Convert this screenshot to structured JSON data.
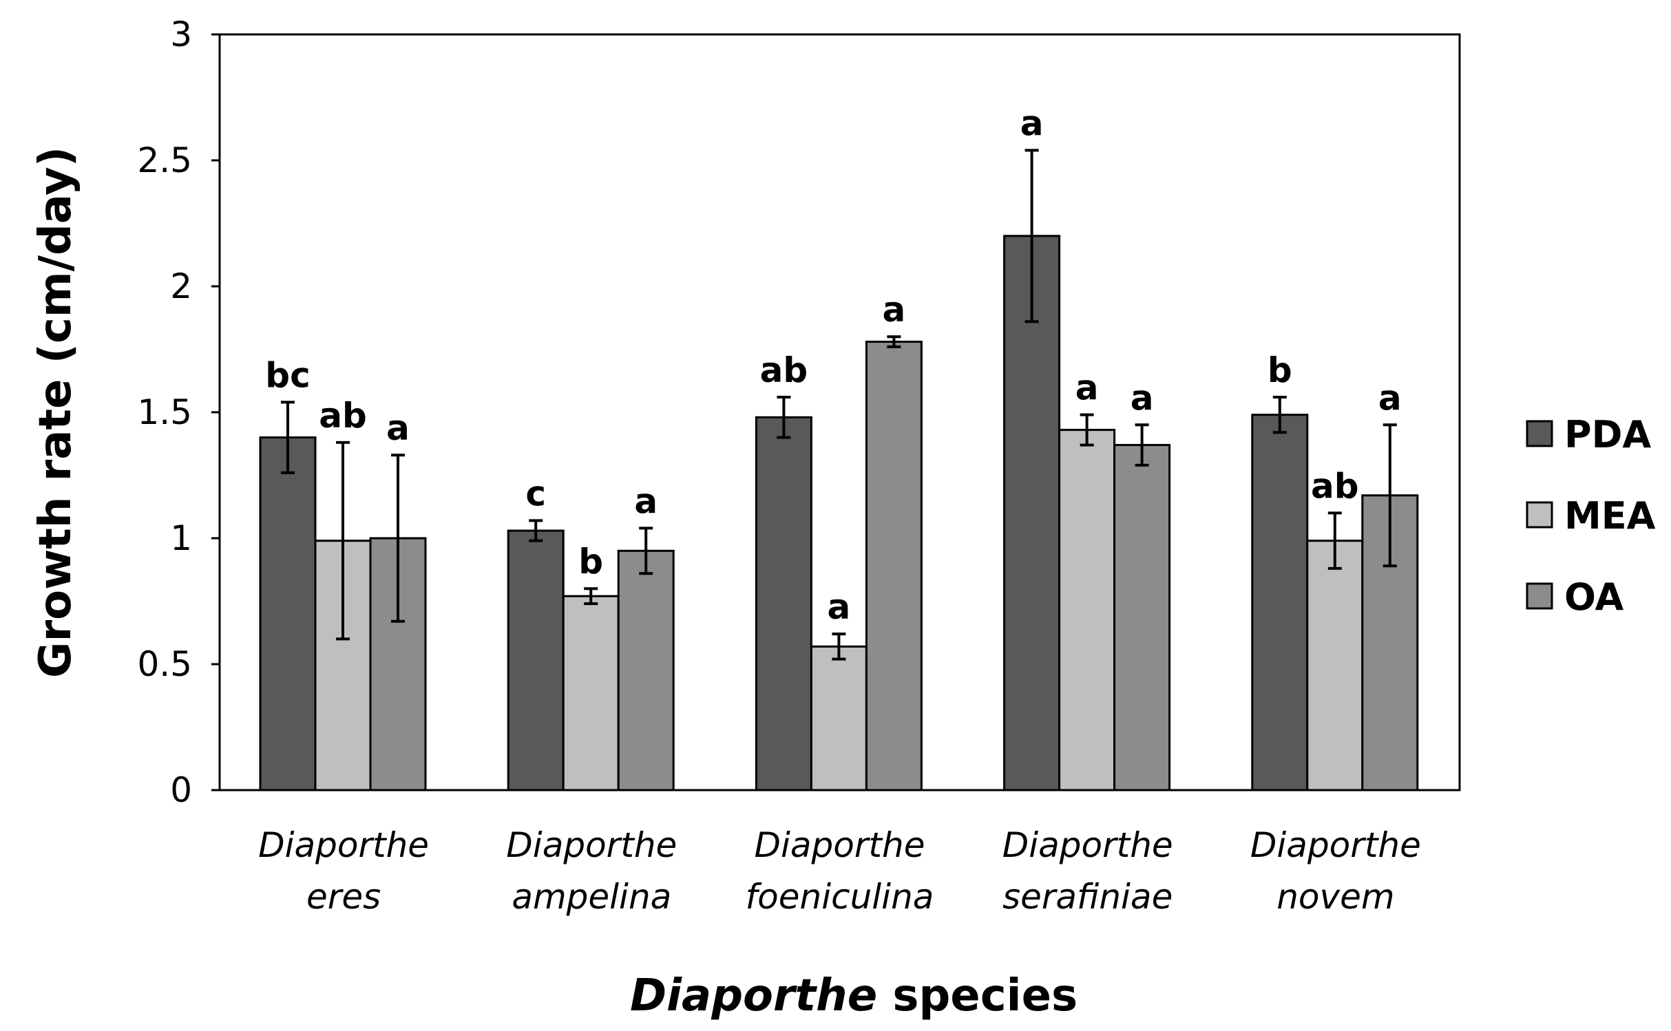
{
  "chart_data": {
    "type": "bar",
    "title": "",
    "ylabel": "Growth rate (cm/day)",
    "xlabel_italic": "Diaporthe",
    "xlabel_rest": " species",
    "ylim": [
      0,
      3
    ],
    "yticks": [
      0,
      0.5,
      1,
      1.5,
      2,
      2.5,
      3
    ],
    "grid": false,
    "legend_position": "right",
    "categories": [
      [
        "Diaporthe",
        "eres"
      ],
      [
        "Diaporthe",
        "ampelina"
      ],
      [
        "Diaporthe",
        "foeniculina"
      ],
      [
        "Diaporthe",
        "serafiniae"
      ],
      [
        "Diaporthe",
        "novem"
      ]
    ],
    "series": [
      {
        "name": "PDA",
        "color": "#595959",
        "values": [
          1.4,
          1.03,
          1.48,
          2.2,
          1.49
        ],
        "errors": [
          0.14,
          0.04,
          0.08,
          0.34,
          0.07
        ],
        "labels": [
          "bc",
          "c",
          "ab",
          "a",
          "b"
        ]
      },
      {
        "name": "MEA",
        "color": "#bfbfbf",
        "values": [
          0.99,
          0.77,
          0.57,
          1.43,
          0.99
        ],
        "errors": [
          0.39,
          0.03,
          0.05,
          0.06,
          0.11
        ],
        "labels": [
          "ab",
          "b",
          "a",
          "a",
          "ab"
        ]
      },
      {
        "name": "OA",
        "color": "#8c8c8c",
        "values": [
          1.0,
          0.95,
          1.78,
          1.37,
          1.17
        ],
        "errors": [
          0.33,
          0.09,
          0.02,
          0.08,
          0.28
        ],
        "labels": [
          "a",
          "a",
          "a",
          "a",
          "a"
        ]
      }
    ]
  }
}
